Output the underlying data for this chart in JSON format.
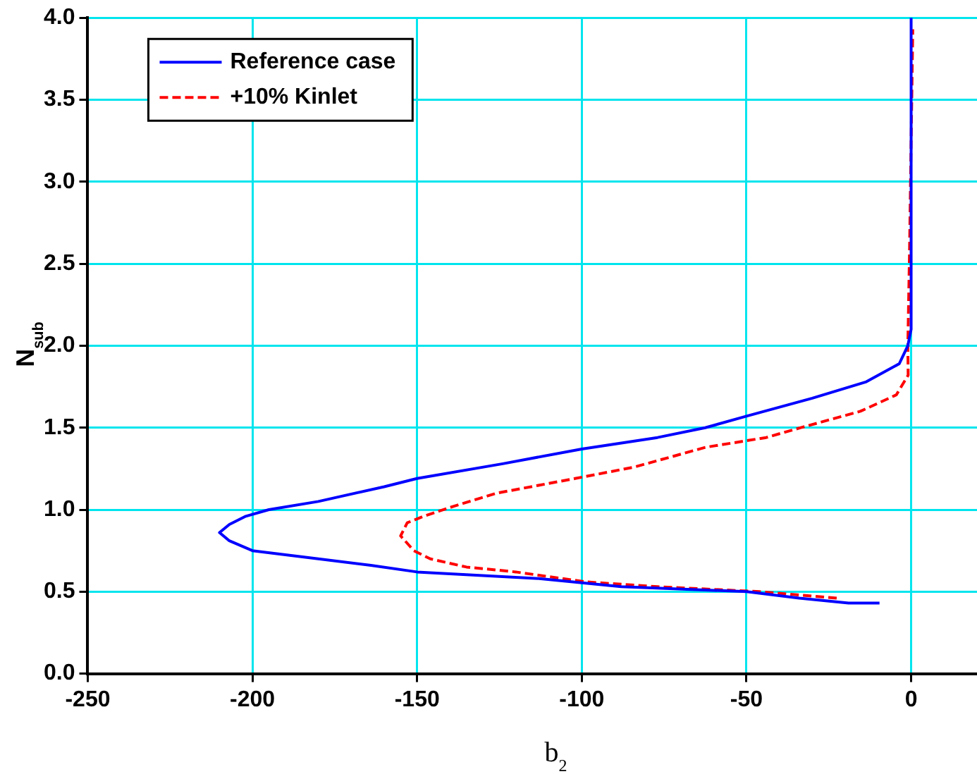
{
  "chart_data": {
    "type": "line",
    "xlabel": "b$_{2}$",
    "ylabel": "N$_{sub}$",
    "xlim": [
      -250,
      20
    ],
    "xticks": [
      -250,
      -200,
      -150,
      -100,
      -50,
      0
    ],
    "ylim": [
      0,
      4
    ],
    "yticks": [
      {
        "value": 0,
        "label": "0.0"
      },
      {
        "value": 0.5,
        "label": "0.5"
      },
      {
        "value": 1,
        "label": "1.0"
      },
      {
        "value": 1.5,
        "label": "1.5"
      },
      {
        "value": 2,
        "label": "2.0"
      },
      {
        "value": 2.5,
        "label": "2.5"
      },
      {
        "value": 3,
        "label": "3.0"
      },
      {
        "value": 3.5,
        "label": "3.5"
      },
      {
        "value": 4,
        "label": "4.0"
      }
    ],
    "grid": true,
    "legend": "top left",
    "marker": "none",
    "series": [
      {
        "name": "Reference case",
        "color": "#0000ff",
        "line_style": "solid",
        "x": [
          -9.6,
          -19,
          -34,
          -50,
          -88,
          -113,
          -150,
          -164,
          -180,
          -200,
          -207,
          -210,
          -207,
          -202,
          -195,
          -180,
          -160,
          -150,
          -124,
          -100,
          -77,
          -62.5,
          -50,
          -30,
          -13.6,
          -3.6,
          -1,
          0,
          0
        ],
        "values": [
          0.43,
          0.43,
          0.46,
          0.5,
          0.53,
          0.58,
          0.62,
          0.66,
          0.7,
          0.75,
          0.81,
          0.86,
          0.91,
          0.96,
          1.0,
          1.05,
          1.14,
          1.19,
          1.28,
          1.37,
          1.44,
          1.5,
          1.57,
          1.68,
          1.78,
          1.89,
          2.0,
          2.1,
          4.0
        ]
      },
      {
        "name": "+10% Kinlet",
        "color": "#ff0000",
        "line_style": "dashed",
        "x": [
          -22.6,
          -46,
          -77,
          -99,
          -120,
          -135,
          -146,
          -151,
          -155,
          -153,
          -148,
          -139,
          -126,
          -102,
          -84,
          -62.5,
          -44,
          -33.5,
          -15.4,
          -4.5,
          -0.9,
          -1,
          -0.5,
          0.5
        ],
        "values": [
          0.46,
          0.5,
          0.53,
          0.56,
          0.62,
          0.65,
          0.7,
          0.75,
          0.84,
          0.92,
          0.96,
          1.02,
          1.1,
          1.19,
          1.26,
          1.38,
          1.44,
          1.5,
          1.6,
          1.7,
          1.82,
          2.0,
          2.56,
          3.93
        ]
      }
    ]
  }
}
